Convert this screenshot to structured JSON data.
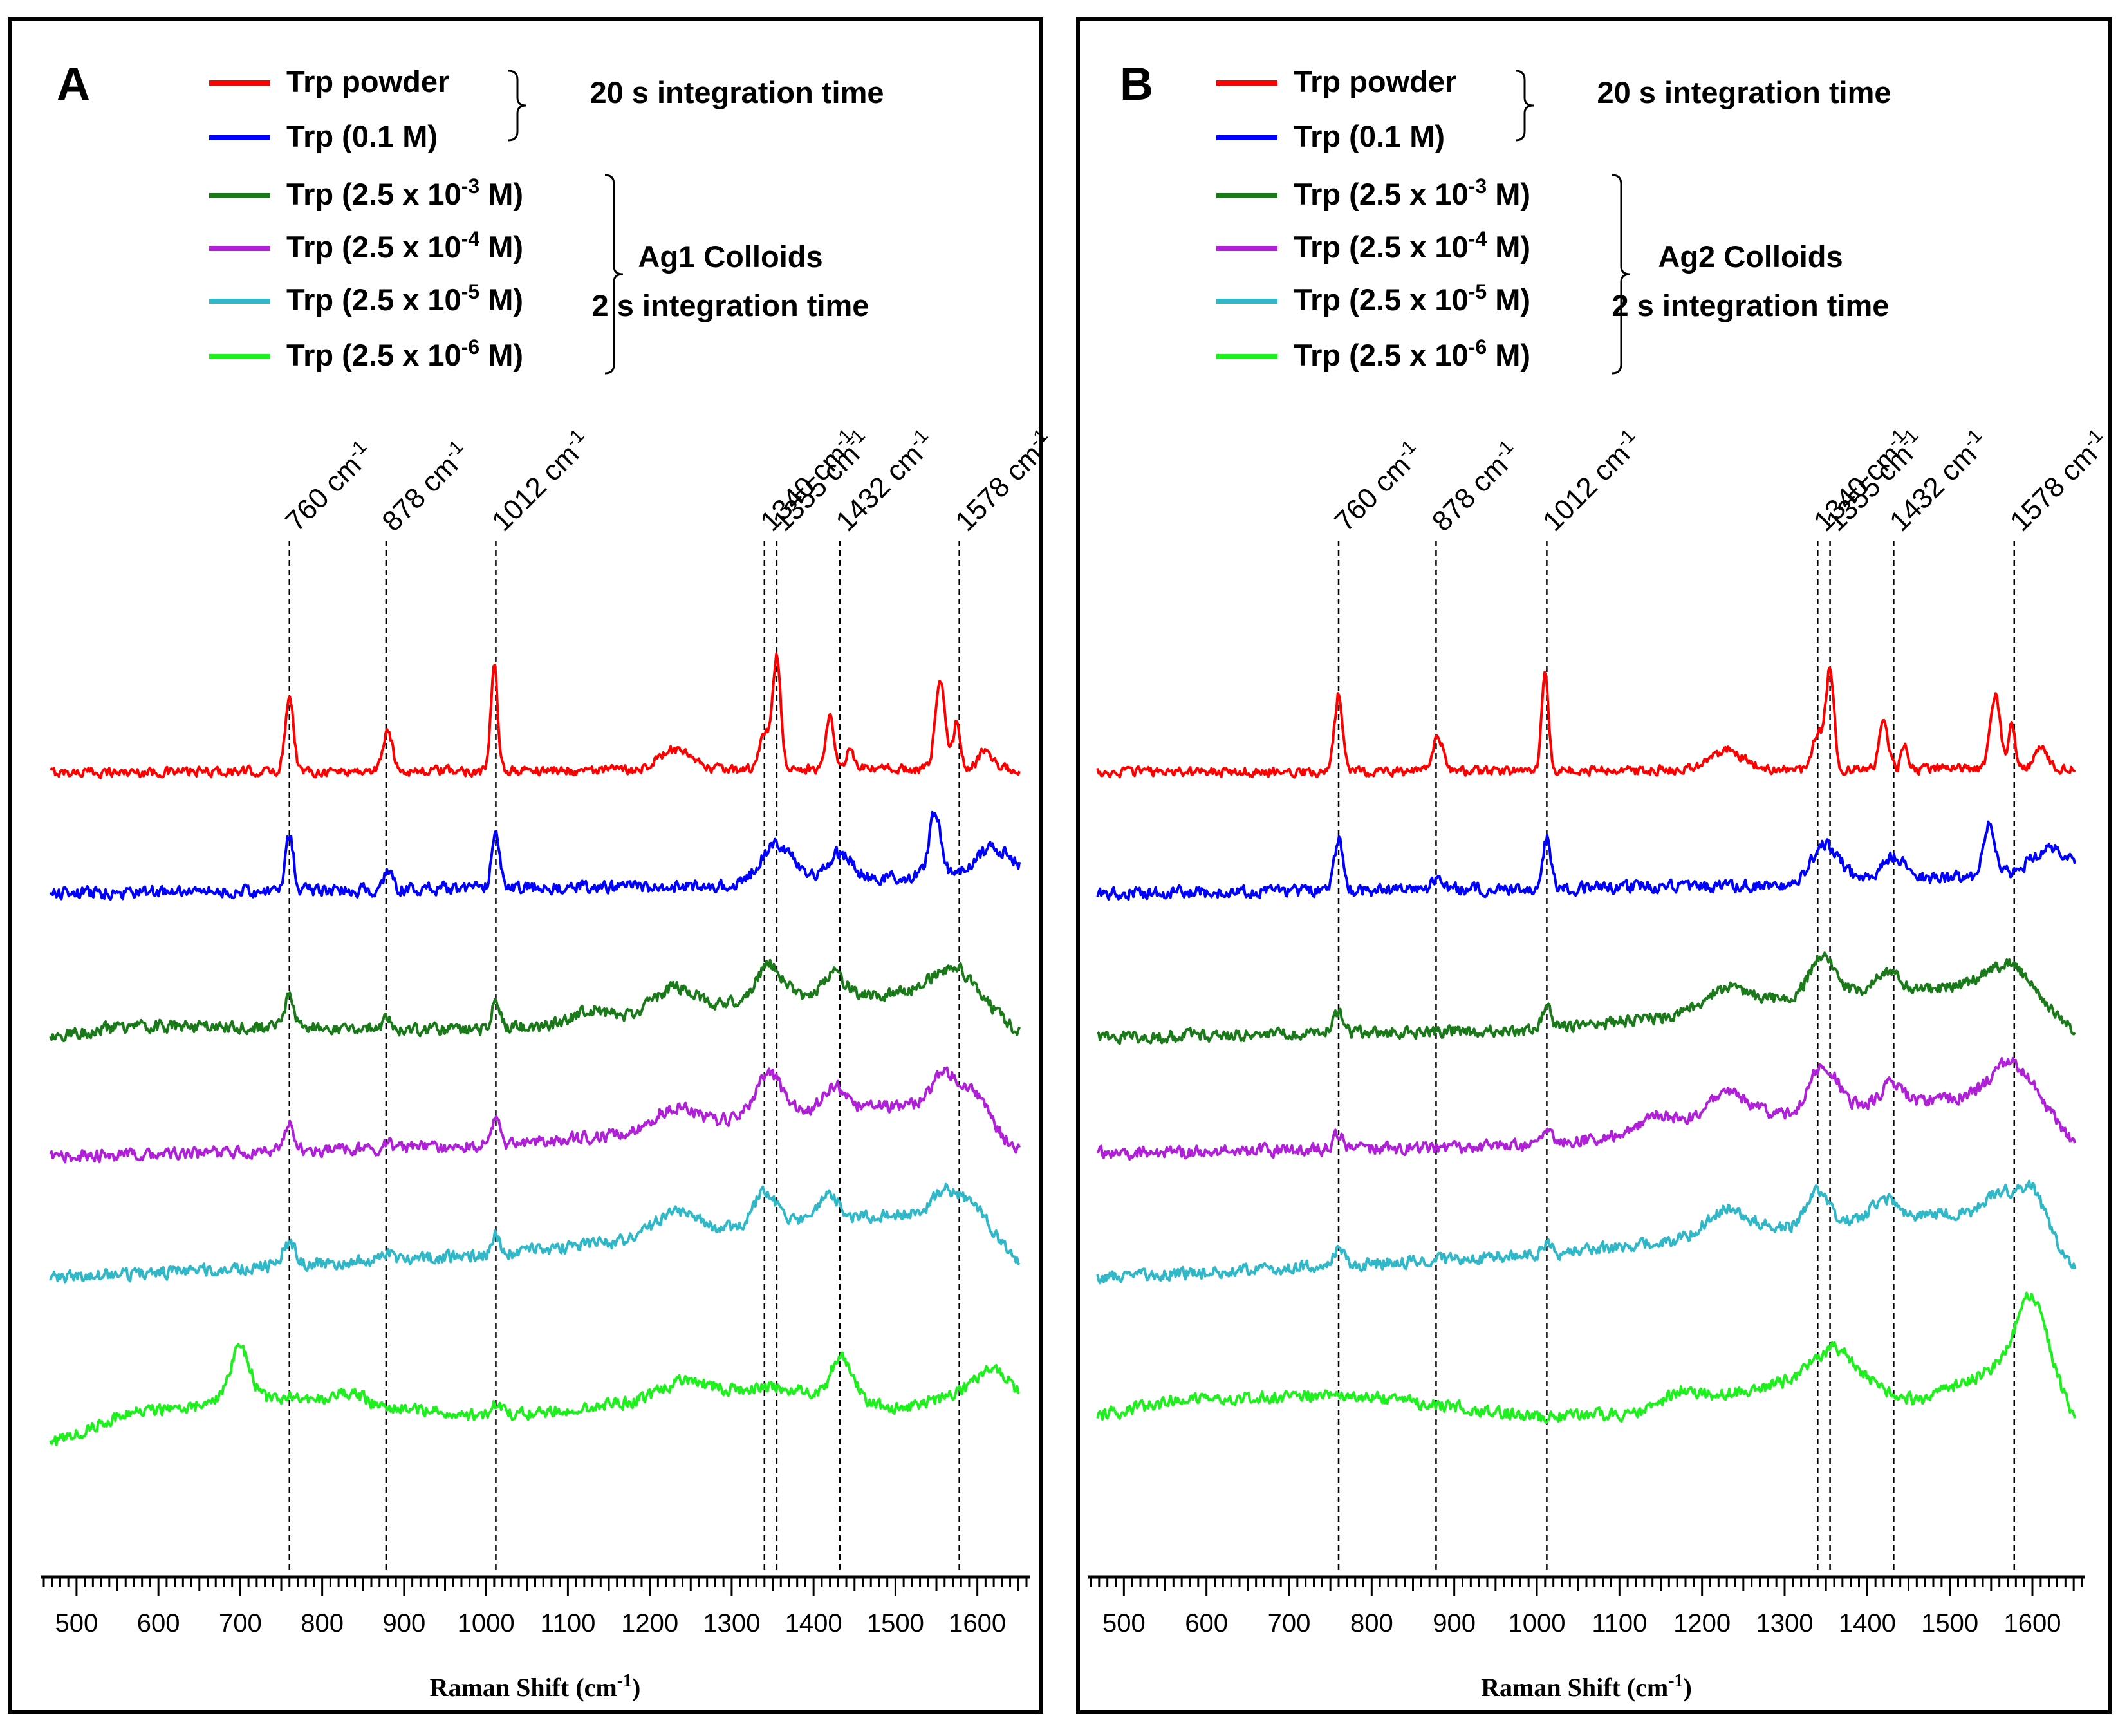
{
  "chart_data": [
    {
      "type": "line",
      "panel_label": "A",
      "xlabel": "Raman Shift (cm⁻¹)",
      "xlim": [
        460,
        1660
      ],
      "xticks": [
        500,
        600,
        700,
        800,
        900,
        1000,
        1100,
        1200,
        1300,
        1400,
        1500,
        1600
      ],
      "yaxis": "stacked spectra (offset, arbitrary units)",
      "legend": [
        {
          "label": "Trp  powder",
          "color": "#ff0000"
        },
        {
          "label": "Trp (0.1 M)",
          "color": "#0000ff"
        },
        {
          "label": "Trp (2.5 x 10⁻³ M)",
          "color": "#1a7a1a"
        },
        {
          "label": "Trp (2.5 x 10⁻⁴ M)",
          "color": "#b020d8"
        },
        {
          "label": "Trp (2.5 x 10⁻⁵ M)",
          "color": "#30b8c8"
        },
        {
          "label": "Trp (2.5 x 10⁻⁶ M)",
          "color": "#1ef01e"
        }
      ],
      "groups": [
        {
          "lines": [
            "20 s integration time"
          ]
        },
        {
          "lines": [
            "Ag1 Colloids",
            "2 s integration time"
          ]
        }
      ],
      "peak_labels": [
        "760 cm⁻¹",
        "878 cm⁻¹",
        "1012 cm⁻¹",
        "1340 cm⁻¹",
        "1355 cm⁻¹",
        "1432 cm⁻¹",
        "1578 cm⁻¹"
      ],
      "peak_positions": [
        760,
        878,
        1012,
        1340,
        1355,
        1432,
        1578
      ],
      "series": [
        {
          "name": "Trp  powder",
          "color": "#ff0000",
          "baseline": [
            [
              460,
              0
            ],
            [
              1660,
              0.1
            ]
          ],
          "peaks": [
            [
              760,
              2.0,
              5
            ],
            [
              880,
              1.0,
              6
            ],
            [
              1010,
              2.7,
              4
            ],
            [
              1230,
              0.5,
              20
            ],
            [
              1340,
              0.9,
              6
            ],
            [
              1355,
              2.9,
              5
            ],
            [
              1420,
              1.3,
              5
            ],
            [
              1445,
              0.6,
              4
            ],
            [
              1555,
              2.3,
              6
            ],
            [
              1575,
              1.3,
              4
            ],
            [
              1610,
              0.5,
              8
            ]
          ]
        },
        {
          "name": "Trp (0.1 M)",
          "color": "#0000ff",
          "baseline": [
            [
              460,
              -0.3
            ],
            [
              1300,
              -0.1
            ],
            [
              1660,
              0.3
            ]
          ],
          "peaks": [
            [
              760,
              1.4,
              5
            ],
            [
              880,
              0.4,
              6
            ],
            [
              1012,
              1.5,
              5
            ],
            [
              1355,
              1.0,
              20
            ],
            [
              1432,
              0.7,
              15
            ],
            [
              1548,
              1.6,
              7
            ],
            [
              1620,
              0.6,
              20
            ]
          ]
        },
        {
          "name": "Trp (2.5 x 10⁻³ M)",
          "color": "#1a7a1a",
          "baseline": [
            [
              460,
              -0.2
            ],
            [
              560,
              0.1
            ],
            [
              1000,
              0.0
            ],
            [
              1230,
              0.4
            ],
            [
              1350,
              0.9
            ],
            [
              1580,
              0.9
            ],
            [
              1660,
              -0.2
            ]
          ],
          "peaks": [
            [
              760,
              0.8,
              6
            ],
            [
              880,
              0.3,
              5
            ],
            [
              1012,
              0.8,
              5
            ],
            [
              1130,
              0.3,
              20
            ],
            [
              1230,
              0.7,
              25
            ],
            [
              1345,
              0.8,
              15
            ],
            [
              1425,
              0.6,
              12
            ],
            [
              1570,
              0.7,
              30
            ]
          ]
        },
        {
          "name": "Trp (2.5 x 10⁻⁴ M)",
          "color": "#b020d8",
          "baseline": [
            [
              460,
              -0.3
            ],
            [
              1000,
              0.0
            ],
            [
              1230,
              0.4
            ],
            [
              1350,
              0.9
            ],
            [
              1580,
              1.1
            ],
            [
              1660,
              -0.3
            ]
          ],
          "peaks": [
            [
              760,
              0.7,
              6
            ],
            [
              880,
              0.2,
              5
            ],
            [
              1012,
              0.7,
              5
            ],
            [
              1230,
              0.6,
              25
            ],
            [
              1345,
              1.0,
              15
            ],
            [
              1425,
              0.6,
              12
            ],
            [
              1560,
              0.8,
              15
            ],
            [
              1600,
              0.5,
              15
            ]
          ]
        },
        {
          "name": "Trp (2.5 x 10⁻⁵ M)",
          "color": "#30b8c8",
          "baseline": [
            [
              460,
              -0.6
            ],
            [
              1000,
              0.0
            ],
            [
              1230,
              0.5
            ],
            [
              1350,
              0.9
            ],
            [
              1580,
              1.1
            ],
            [
              1660,
              -0.3
            ]
          ],
          "peaks": [
            [
              760,
              0.6,
              8
            ],
            [
              880,
              0.2,
              5
            ],
            [
              1012,
              0.5,
              5
            ],
            [
              1230,
              0.6,
              25
            ],
            [
              1340,
              0.8,
              12
            ],
            [
              1420,
              0.6,
              12
            ],
            [
              1560,
              0.6,
              15
            ],
            [
              1600,
              0.5,
              15
            ]
          ]
        },
        {
          "name": "Trp (2.5 x 10⁻⁶ M)",
          "color": "#1ef01e",
          "baseline": [
            [
              460,
              -1.4
            ],
            [
              560,
              -0.5
            ],
            [
              650,
              -0.3
            ],
            [
              760,
              -0.1
            ],
            [
              1000,
              -0.6
            ],
            [
              1200,
              -0.2
            ],
            [
              1350,
              0.2
            ],
            [
              1500,
              -0.4
            ],
            [
              1620,
              0.2
            ],
            [
              1660,
              -0.2
            ]
          ],
          "peaks": [
            [
              700,
              1.4,
              12
            ],
            [
              835,
              0.3,
              15
            ],
            [
              1012,
              0.3,
              6
            ],
            [
              1240,
              0.4,
              30
            ],
            [
              1432,
              1.1,
              10
            ],
            [
              1450,
              0.4,
              8
            ],
            [
              1620,
              0.5,
              20
            ]
          ]
        }
      ]
    },
    {
      "type": "line",
      "panel_label": "B",
      "xlabel": "Raman Shift (cm⁻¹)",
      "xlim": [
        460,
        1660
      ],
      "xticks": [
        500,
        600,
        700,
        800,
        900,
        1000,
        1100,
        1200,
        1300,
        1400,
        1500,
        1600
      ],
      "yaxis": "stacked spectra (offset, arbitrary units)",
      "legend": [
        {
          "label": "Trp  powder",
          "color": "#ff0000"
        },
        {
          "label": "Trp (0.1 M)",
          "color": "#0000ff"
        },
        {
          "label": "Trp (2.5 x 10⁻³ M)",
          "color": "#1a7a1a"
        },
        {
          "label": "Trp (2.5 x 10⁻⁴ M)",
          "color": "#b020d8"
        },
        {
          "label": "Trp (2.5 x 10⁻⁵ M)",
          "color": "#30b8c8"
        },
        {
          "label": "Trp (2.5 x 10⁻⁶ M)",
          "color": "#1ef01e"
        }
      ],
      "groups": [
        {
          "lines": [
            "20 s integration time"
          ]
        },
        {
          "lines": [
            "Ag2 Colloids",
            "2 s integration time"
          ]
        }
      ],
      "peak_labels": [
        "760 cm⁻¹",
        "878 cm⁻¹",
        "1012 cm⁻¹",
        "1340 cm⁻¹",
        "1355 cm⁻¹",
        "1432 cm⁻¹",
        "1578 cm⁻¹"
      ],
      "peak_positions": [
        760,
        878,
        1012,
        1340,
        1355,
        1432,
        1578
      ],
      "series": [
        {
          "name": "Trp  powder",
          "color": "#ff0000",
          "baseline": [
            [
              460,
              0
            ],
            [
              1660,
              0.1
            ]
          ],
          "peaks": [
            [
              760,
              2.0,
              5
            ],
            [
              880,
              0.9,
              6
            ],
            [
              1010,
              2.7,
              4
            ],
            [
              1230,
              0.5,
              20
            ],
            [
              1340,
              1.0,
              6
            ],
            [
              1355,
              2.6,
              5
            ],
            [
              1420,
              1.4,
              5
            ],
            [
              1445,
              0.6,
              4
            ],
            [
              1555,
              1.9,
              6
            ],
            [
              1575,
              1.1,
              4
            ],
            [
              1610,
              0.5,
              8
            ]
          ]
        },
        {
          "name": "Trp (0.1 M)",
          "color": "#0000ff",
          "baseline": [
            [
              460,
              -0.3
            ],
            [
              1300,
              -0.1
            ],
            [
              1660,
              0.3
            ]
          ],
          "peaks": [
            [
              760,
              1.3,
              5
            ],
            [
              880,
              0.3,
              6
            ],
            [
              1012,
              1.3,
              5
            ],
            [
              1350,
              1.0,
              18
            ],
            [
              1432,
              0.6,
              15
            ],
            [
              1548,
              1.4,
              7
            ],
            [
              1620,
              0.6,
              20
            ]
          ]
        },
        {
          "name": "Trp (2.5 x 10⁻³ M)",
          "color": "#1a7a1a",
          "baseline": [
            [
              460,
              -0.2
            ],
            [
              1000,
              0.0
            ],
            [
              1230,
              0.5
            ],
            [
              1350,
              1.0
            ],
            [
              1580,
              1.1
            ],
            [
              1660,
              -0.2
            ]
          ],
          "peaks": [
            [
              760,
              0.6,
              6
            ],
            [
              1012,
              0.6,
              5
            ],
            [
              1230,
              0.6,
              25
            ],
            [
              1345,
              0.9,
              15
            ],
            [
              1425,
              0.5,
              12
            ],
            [
              1570,
              0.6,
              30
            ]
          ]
        },
        {
          "name": "Trp (2.5 x 10⁻⁴ M)",
          "color": "#b020d8",
          "baseline": [
            [
              460,
              -0.2
            ],
            [
              1000,
              0.0
            ],
            [
              1230,
              0.6
            ],
            [
              1350,
              1.0
            ],
            [
              1600,
              1.4
            ],
            [
              1660,
              -0.2
            ]
          ],
          "peaks": [
            [
              760,
              0.4,
              6
            ],
            [
              1012,
              0.4,
              5
            ],
            [
              1150,
              0.4,
              20
            ],
            [
              1230,
              0.8,
              25
            ],
            [
              1340,
              0.9,
              12
            ],
            [
              1360,
              0.6,
              10
            ],
            [
              1430,
              0.5,
              12
            ],
            [
              1570,
              0.8,
              20
            ]
          ]
        },
        {
          "name": "Trp (2.5 x 10⁻⁵ M)",
          "color": "#30b8c8",
          "baseline": [
            [
              460,
              -0.6
            ],
            [
              1000,
              0.0
            ],
            [
              1230,
              0.5
            ],
            [
              1350,
              0.9
            ],
            [
              1600,
              1.2
            ],
            [
              1660,
              -0.6
            ]
          ],
          "peaks": [
            [
              760,
              0.4,
              6
            ],
            [
              1012,
              0.3,
              5
            ],
            [
              1230,
              0.7,
              25
            ],
            [
              1340,
              0.8,
              12
            ],
            [
              1420,
              0.5,
              12
            ],
            [
              1560,
              0.5,
              15
            ],
            [
              1600,
              0.6,
              15
            ]
          ]
        },
        {
          "name": "Trp (2.5 x 10⁻⁶ M)",
          "color": "#1ef01e",
          "baseline": [
            [
              460,
              -0.6
            ],
            [
              560,
              -0.2
            ],
            [
              760,
              0.0
            ],
            [
              1000,
              -0.6
            ],
            [
              1150,
              -0.5
            ],
            [
              1200,
              -0.1
            ],
            [
              1360,
              0.5
            ],
            [
              1460,
              -0.2
            ],
            [
              1600,
              1.0
            ],
            [
              1660,
              -1.0
            ]
          ],
          "peaks": [
            [
              1170,
              0.4,
              20
            ],
            [
              1360,
              0.7,
              25
            ],
            [
              1600,
              1.6,
              20
            ]
          ]
        }
      ]
    }
  ]
}
